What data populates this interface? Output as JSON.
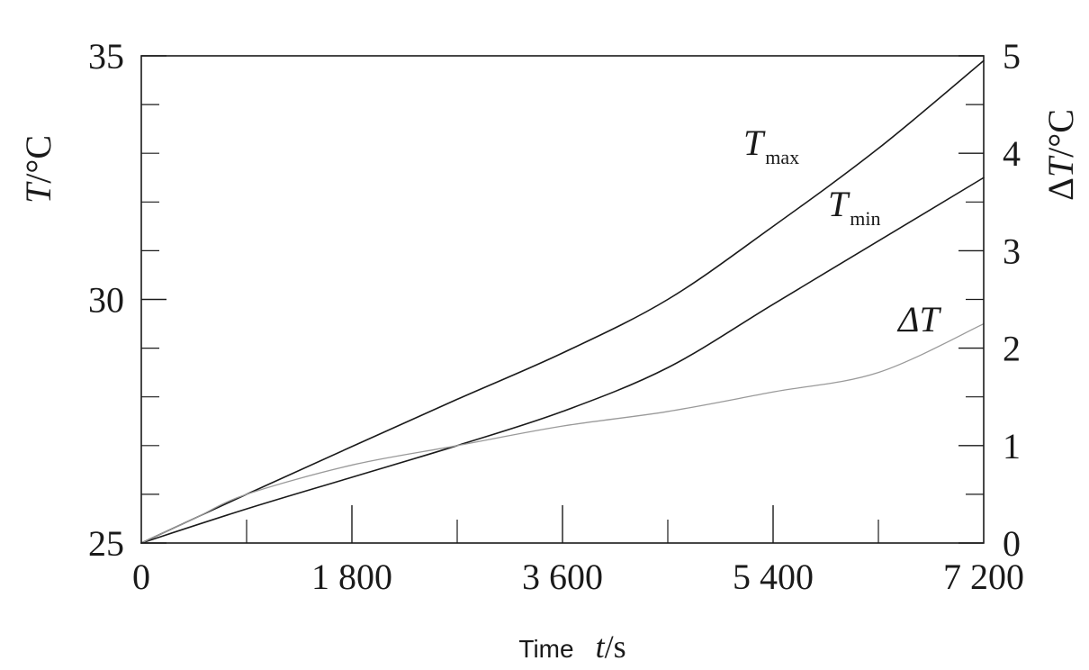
{
  "chart_data": {
    "type": "line",
    "title": "",
    "xlabel": {
      "prefix": "Time",
      "symbol": "t",
      "unit": "/s"
    },
    "ylabel_left": {
      "symbol": "T",
      "unit": "/°C"
    },
    "ylabel_right": {
      "prefix": "Δ",
      "symbol": "T",
      "unit": "/°C"
    },
    "xlim": [
      0,
      7200
    ],
    "ylim_left": [
      25,
      35
    ],
    "ylim_right": [
      0,
      5
    ],
    "x_ticks": [
      0,
      1800,
      3600,
      5400,
      7200
    ],
    "x_tick_labels": [
      "0",
      "1 800",
      "3 600",
      "5 400",
      "7 200"
    ],
    "x_minor_ticks": [
      900,
      2700,
      4500,
      6300
    ],
    "y_left_ticks": [
      25,
      30,
      35
    ],
    "y_left_tick_labels": [
      "25",
      "30",
      "35"
    ],
    "y_left_minor_ticks": [
      26,
      27,
      28,
      29,
      31,
      32,
      33,
      34
    ],
    "y_right_ticks": [
      0,
      1,
      2,
      3,
      4,
      5
    ],
    "y_right_tick_labels": [
      "0",
      "1",
      "2",
      "3",
      "4",
      "5"
    ],
    "y_right_minor_ticks": [
      0.5,
      1.5,
      2.5,
      3.5,
      4.5
    ],
    "grid": false,
    "legend": "none",
    "series": [
      {
        "name": "T_max",
        "label_main": "T",
        "label_sub": "max",
        "axis": "left",
        "color": "#1a1a1a",
        "x": [
          0,
          900,
          1800,
          2700,
          3600,
          4500,
          5400,
          6300,
          7200
        ],
        "values": [
          25.0,
          26.0,
          26.98,
          27.95,
          28.9,
          30.0,
          31.5,
          33.1,
          34.9
        ]
      },
      {
        "name": "T_min",
        "label_main": "T",
        "label_sub": "min",
        "axis": "left",
        "color": "#1a1a1a",
        "x": [
          0,
          900,
          1800,
          2700,
          3600,
          4500,
          5400,
          6300,
          7200
        ],
        "values": [
          25.0,
          25.7,
          26.35,
          27.0,
          27.7,
          28.6,
          29.9,
          31.2,
          32.5
        ]
      },
      {
        "name": "ΔT",
        "label_main": "ΔT",
        "axis": "right",
        "color": "#9a9a9a",
        "x": [
          0,
          450,
          900,
          1800,
          2700,
          3600,
          4500,
          5400,
          6300,
          7200
        ],
        "values": [
          0,
          0.25,
          0.5,
          0.8,
          1.0,
          1.2,
          1.35,
          1.55,
          1.75,
          2.25
        ]
      }
    ]
  }
}
